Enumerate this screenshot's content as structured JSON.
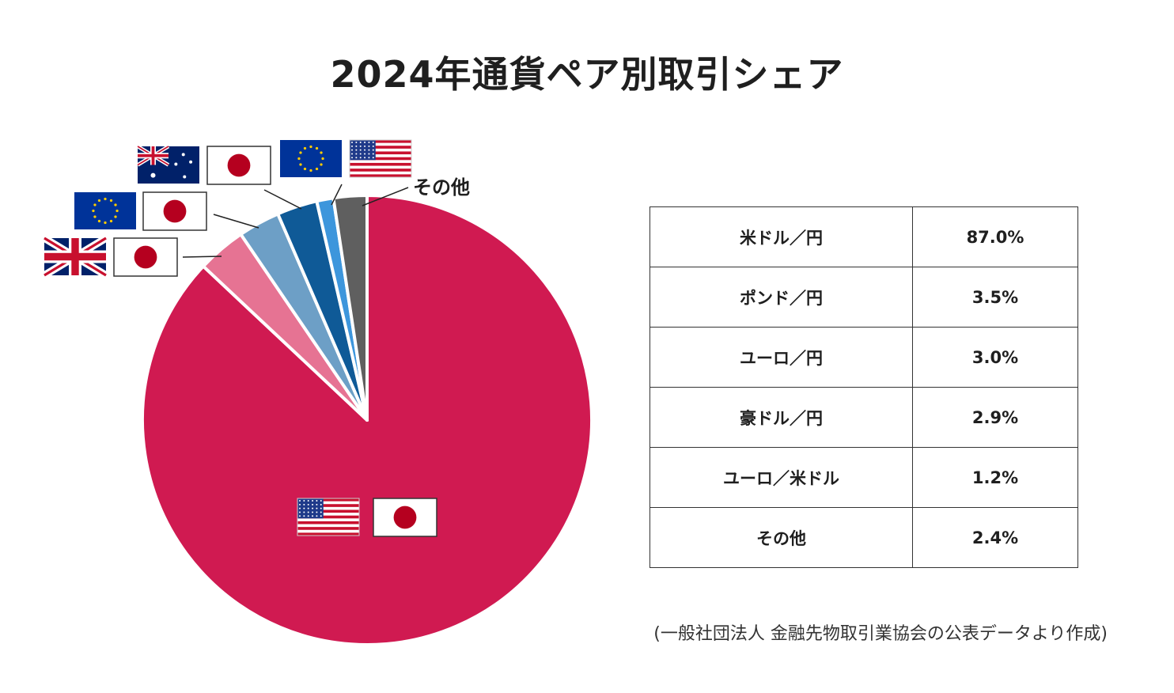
{
  "title": "2024年通貨ペア別取引シェア",
  "source_note": "(一般社団法人 金融先物取引業協会の公表データより作成)",
  "chart_data": {
    "type": "pie",
    "title": "2024年通貨ペア別取引シェア",
    "unit": "%",
    "slices": [
      {
        "label": "米ドル／円",
        "display": "87.0%",
        "value": 87.0,
        "color": "#d01a51",
        "flags": [
          "us-flag",
          "jp-flag"
        ]
      },
      {
        "label": "ポンド／円",
        "display": "3.5%",
        "value": 3.5,
        "color": "#e67393",
        "flags": [
          "uk-flag",
          "jp-flag"
        ]
      },
      {
        "label": "ユーロ／円",
        "display": "3.0%",
        "value": 3.0,
        "color": "#6d9fc6",
        "flags": [
          "eu-flag",
          "jp-flag"
        ]
      },
      {
        "label": "豪ドル／円",
        "display": "2.9%",
        "value": 2.9,
        "color": "#0f5a97",
        "flags": [
          "au-flag",
          "jp-flag"
        ]
      },
      {
        "label": "ユーロ／米ドル",
        "display": "1.2%",
        "value": 1.2,
        "color": "#3d96dc",
        "flags": [
          "eu-flag",
          "us-flag"
        ]
      },
      {
        "label": "その他",
        "display": "2.4%",
        "value": 2.4,
        "color": "#5f5f5f",
        "flags": []
      }
    ],
    "legend": "table-right",
    "other_label": "その他"
  }
}
